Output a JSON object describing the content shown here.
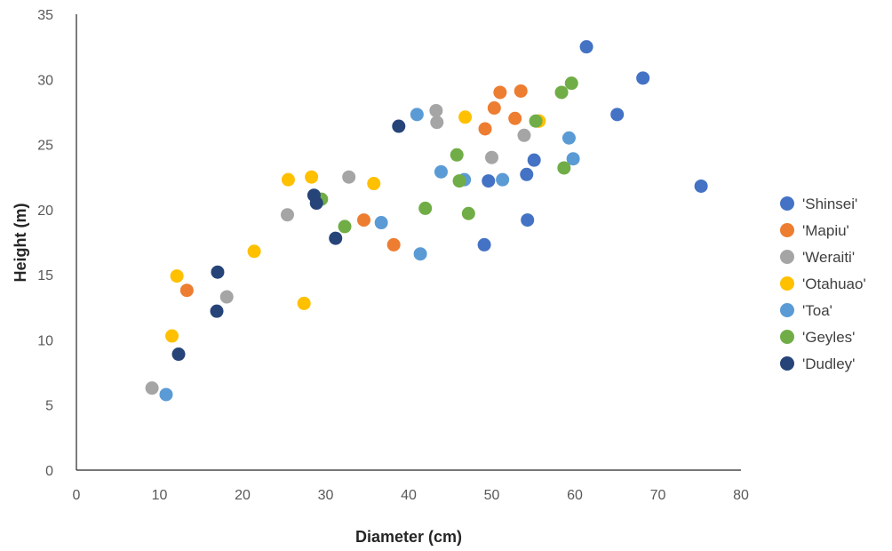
{
  "chart_data": {
    "type": "scatter",
    "xlabel": "Diameter (cm)",
    "ylabel": "Height (m)",
    "xlim": [
      0,
      80
    ],
    "ylim": [
      0,
      35
    ],
    "x_ticks": [
      0,
      10,
      20,
      30,
      40,
      50,
      60,
      70,
      80
    ],
    "y_ticks": [
      0,
      5,
      10,
      15,
      20,
      25,
      30,
      35
    ],
    "grid": false,
    "legend_position": "right",
    "series": [
      {
        "name": "'Shinsei'",
        "color": "#4472C4",
        "points": [
          [
            61.4,
            32.5
          ],
          [
            68.2,
            30.1
          ],
          [
            65.1,
            27.3
          ],
          [
            75.2,
            21.8
          ],
          [
            55.1,
            23.8
          ],
          [
            54.2,
            22.7
          ],
          [
            49.6,
            22.2
          ],
          [
            49.1,
            17.3
          ],
          [
            54.3,
            19.2
          ]
        ]
      },
      {
        "name": "'Mapiu'",
        "color": "#ED7D31",
        "points": [
          [
            51.0,
            29.0
          ],
          [
            53.5,
            29.1
          ],
          [
            50.3,
            27.8
          ],
          [
            52.8,
            27.0
          ],
          [
            49.2,
            26.2
          ],
          [
            34.6,
            19.2
          ],
          [
            38.2,
            17.3
          ],
          [
            13.3,
            13.8
          ],
          [
            55.6,
            26.8
          ]
        ]
      },
      {
        "name": "'Weraiti'",
        "color": "#A5A5A5",
        "points": [
          [
            43.3,
            27.6
          ],
          [
            43.4,
            26.7
          ],
          [
            53.9,
            25.7
          ],
          [
            50.0,
            24.0
          ],
          [
            32.8,
            22.5
          ],
          [
            25.4,
            19.6
          ],
          [
            18.1,
            13.3
          ],
          [
            9.1,
            6.3
          ]
        ]
      },
      {
        "name": "'Otahuao'",
        "color": "#FFC000",
        "points": [
          [
            46.8,
            27.1
          ],
          [
            55.7,
            26.8
          ],
          [
            25.5,
            22.3
          ],
          [
            28.3,
            22.5
          ],
          [
            35.8,
            22.0
          ],
          [
            21.4,
            16.8
          ],
          [
            12.1,
            14.9
          ],
          [
            27.4,
            12.8
          ],
          [
            11.5,
            10.3
          ]
        ]
      },
      {
        "name": "'Toa'",
        "color": "#5B9BD5",
        "points": [
          [
            41.0,
            27.3
          ],
          [
            59.3,
            25.5
          ],
          [
            59.8,
            23.9
          ],
          [
            43.9,
            22.9
          ],
          [
            46.7,
            22.3
          ],
          [
            51.3,
            22.3
          ],
          [
            36.7,
            19.0
          ],
          [
            41.4,
            16.6
          ],
          [
            10.8,
            5.8
          ]
        ]
      },
      {
        "name": "'Geyles'",
        "color": "#70AD47",
        "points": [
          [
            59.6,
            29.7
          ],
          [
            58.4,
            29.0
          ],
          [
            55.3,
            26.8
          ],
          [
            45.8,
            24.2
          ],
          [
            58.7,
            23.2
          ],
          [
            46.1,
            22.2
          ],
          [
            29.5,
            20.8
          ],
          [
            42.0,
            20.1
          ],
          [
            47.2,
            19.7
          ],
          [
            32.3,
            18.7
          ]
        ]
      },
      {
        "name": "'Dudley'",
        "color": "#264478",
        "points": [
          [
            38.8,
            26.4
          ],
          [
            28.6,
            21.1
          ],
          [
            28.9,
            20.5
          ],
          [
            31.2,
            17.8
          ],
          [
            17.0,
            15.2
          ],
          [
            16.9,
            12.2
          ],
          [
            12.3,
            8.9
          ]
        ]
      }
    ]
  }
}
